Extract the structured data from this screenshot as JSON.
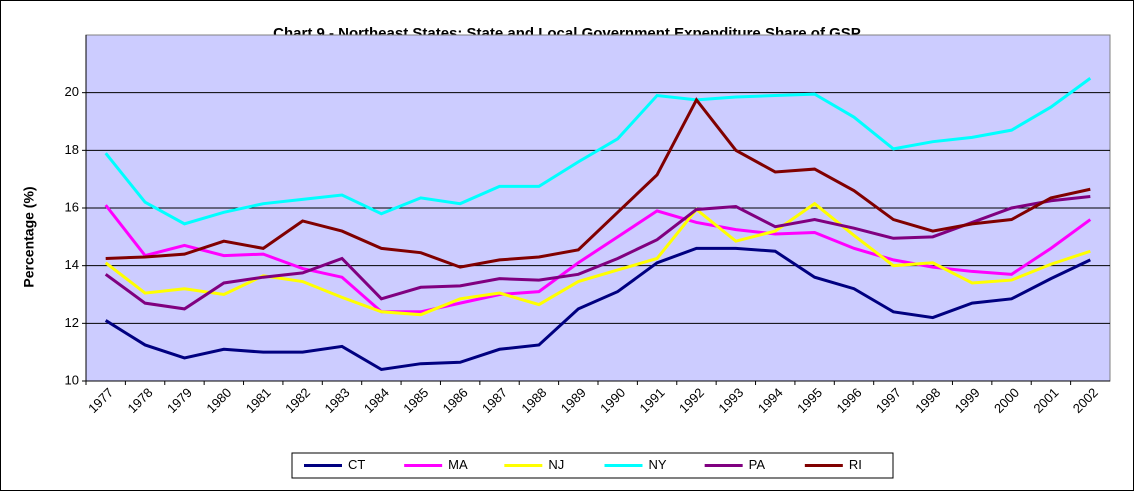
{
  "chart_data": {
    "type": "line",
    "title": "Chart 9 - Northeast States: State and Local Government Expenditure Share of GSP",
    "y_label": "Percentage (%)",
    "categories": [
      "1977",
      "1978",
      "1979",
      "1980",
      "1981",
      "1982",
      "1983",
      "1984",
      "1985",
      "1986",
      "1987",
      "1988",
      "1989",
      "1990",
      "1991",
      "1992",
      "1993",
      "1994",
      "1995",
      "1996",
      "1997",
      "1998",
      "1999",
      "2000",
      "2001",
      "2002"
    ],
    "series": [
      {
        "name": "CT",
        "color": "#000080",
        "values": [
          12.1,
          11.25,
          10.8,
          11.1,
          11.0,
          11.0,
          11.2,
          10.4,
          10.6,
          10.65,
          11.1,
          11.25,
          12.5,
          13.1,
          14.1,
          14.6,
          14.6,
          14.5,
          13.6,
          13.2,
          12.4,
          12.2,
          12.7,
          12.85,
          13.55,
          14.2
        ]
      },
      {
        "name": "MA",
        "color": "#ff00ff",
        "values": [
          16.1,
          14.35,
          14.7,
          14.35,
          14.4,
          13.9,
          13.6,
          12.4,
          12.4,
          12.7,
          13.0,
          13.1,
          14.1,
          15.0,
          15.9,
          15.5,
          15.25,
          15.1,
          15.15,
          14.6,
          14.2,
          13.95,
          13.8,
          13.7,
          14.6,
          15.6
        ]
      },
      {
        "name": "NJ",
        "color": "#ffff00",
        "values": [
          14.1,
          13.05,
          13.2,
          13.0,
          13.65,
          13.45,
          12.9,
          12.4,
          12.3,
          12.85,
          13.05,
          12.65,
          13.45,
          13.85,
          14.25,
          15.95,
          14.85,
          15.2,
          16.15,
          15.05,
          14.0,
          14.1,
          13.4,
          13.5,
          14.05,
          14.5
        ]
      },
      {
        "name": "NY",
        "color": "#00ffff",
        "values": [
          17.9,
          16.2,
          15.45,
          15.85,
          16.15,
          16.3,
          16.45,
          15.8,
          16.35,
          16.15,
          16.75,
          16.75,
          17.6,
          18.4,
          19.9,
          19.75,
          19.85,
          19.9,
          19.95,
          19.15,
          18.05,
          18.3,
          18.45,
          18.7,
          19.5,
          20.5
        ]
      },
      {
        "name": "PA",
        "color": "#800080",
        "values": [
          13.7,
          12.7,
          12.5,
          13.4,
          13.6,
          13.75,
          14.25,
          12.85,
          13.25,
          13.3,
          13.55,
          13.5,
          13.7,
          14.25,
          14.9,
          15.95,
          16.05,
          15.35,
          15.6,
          15.3,
          14.95,
          15.0,
          15.5,
          16.0,
          16.25,
          16.4
        ]
      },
      {
        "name": "RI",
        "color": "#800000",
        "values": [
          14.25,
          14.3,
          14.4,
          14.85,
          14.6,
          15.55,
          15.2,
          14.6,
          14.45,
          13.95,
          14.2,
          14.3,
          14.55,
          15.85,
          17.15,
          19.75,
          18.0,
          17.25,
          17.35,
          16.6,
          15.6,
          15.2,
          15.45,
          15.6,
          16.35,
          16.65
        ]
      }
    ],
    "ylim": [
      10,
      22
    ],
    "yticks": [
      10,
      12,
      14,
      16,
      18,
      20
    ],
    "grid": true,
    "plot_color": "#ccccff",
    "legend": "bottom"
  }
}
